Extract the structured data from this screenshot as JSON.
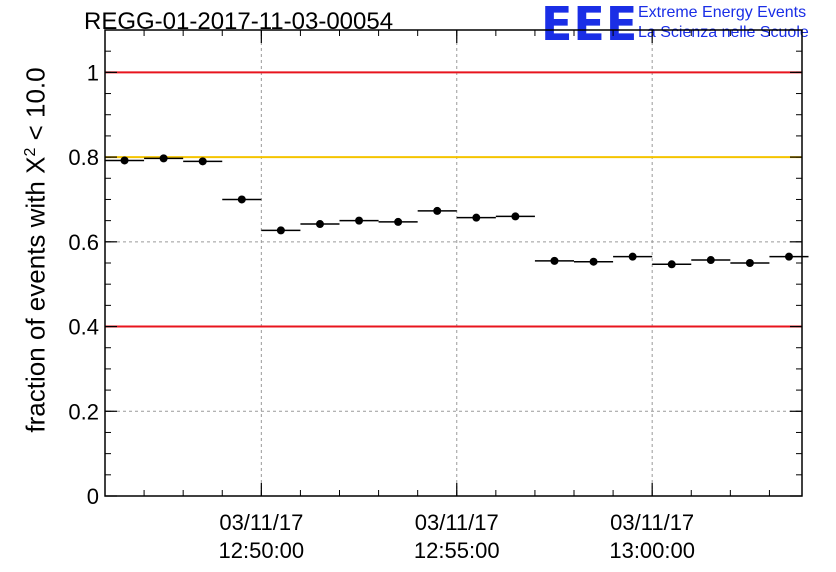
{
  "title": "REGG-01-2017-11-03-00054",
  "logo": {
    "mark": "EEE",
    "line1": "Extreme Energy Events",
    "line2": "La Scienza nelle Scuole"
  },
  "chart_data": {
    "type": "scatter",
    "ylabel_prefix": "fraction of events with ",
    "ylabel_symbol": "X",
    "ylabel_sup": "2",
    "ylabel_suffix": " < 10.0",
    "ylim": [
      0,
      1.1
    ],
    "yticks": [
      "0",
      "0.2",
      "0.4",
      "0.6",
      "0.8",
      "1"
    ],
    "ytick_values": [
      0,
      0.2,
      0.4,
      0.6,
      0.8,
      1.0
    ],
    "xlim": [
      "12:46:00",
      "13:03:50"
    ],
    "xticks": [
      {
        "date": "03/11/17",
        "time": "12:50:00"
      },
      {
        "date": "03/11/17",
        "time": "12:55:00"
      },
      {
        "date": "03/11/17",
        "time": "13:00:00"
      }
    ],
    "grid": true,
    "bin_width_seconds": 60,
    "reference_lines": [
      {
        "y": 1.0,
        "color": "#e8141e"
      },
      {
        "y": 0.8,
        "color": "#f5c400"
      },
      {
        "y": 0.4,
        "color": "#e8141e"
      }
    ],
    "points": [
      {
        "x": "12:46:30",
        "y": 0.792
      },
      {
        "x": "12:47:30",
        "y": 0.797
      },
      {
        "x": "12:48:30",
        "y": 0.79
      },
      {
        "x": "12:49:30",
        "y": 0.7
      },
      {
        "x": "12:50:30",
        "y": 0.627
      },
      {
        "x": "12:51:30",
        "y": 0.642
      },
      {
        "x": "12:52:30",
        "y": 0.65
      },
      {
        "x": "12:53:30",
        "y": 0.647
      },
      {
        "x": "12:54:30",
        "y": 0.673
      },
      {
        "x": "12:55:30",
        "y": 0.657
      },
      {
        "x": "12:56:30",
        "y": 0.66
      },
      {
        "x": "12:57:30",
        "y": 0.555
      },
      {
        "x": "12:58:30",
        "y": 0.553
      },
      {
        "x": "12:59:30",
        "y": 0.565
      },
      {
        "x": "13:00:30",
        "y": 0.547
      },
      {
        "x": "13:01:30",
        "y": 0.557
      },
      {
        "x": "13:02:30",
        "y": 0.55
      },
      {
        "x": "13:03:30",
        "y": 0.565
      }
    ]
  }
}
